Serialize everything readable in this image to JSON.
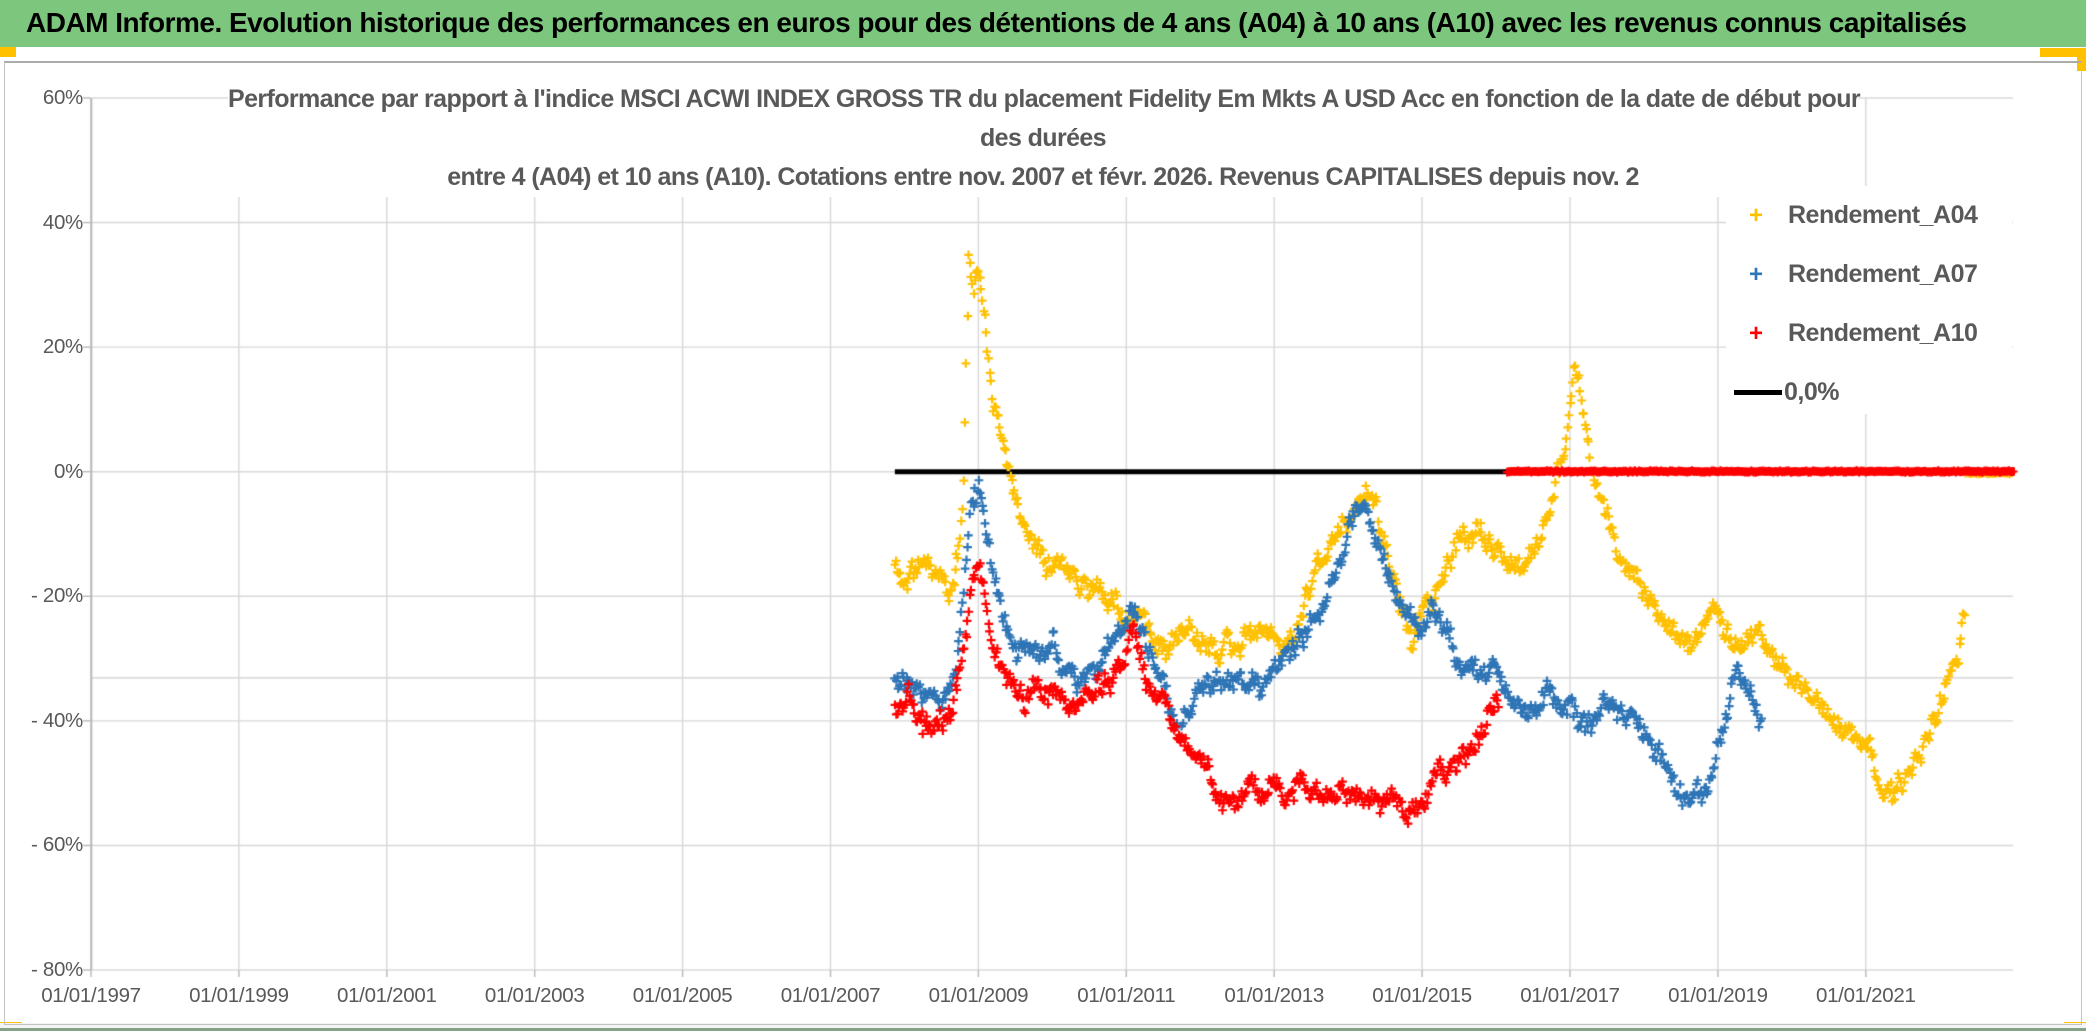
{
  "header": {
    "title": "ADAM Informe. Evolution historique des performances en euros pour des détentions de 4 ans (A04) à 10 ans (A10) avec les revenus connus capitalisés"
  },
  "colors": {
    "header_green": "#7cc77d",
    "gold": "#FFC000",
    "blue": "#2E75B6",
    "red": "#FF0000",
    "black": "#000000",
    "text_gray": "#595959",
    "gridline": "#d8d8d8",
    "axis_line": "#b8b8b8"
  },
  "chart_data": {
    "type": "scatter",
    "title_lines": [
      "Performance par rapport à l'indice MSCI ACWI INDEX GROSS TR  du placement Fidelity Em Mkts A USD Acc en fonction de la date de début pour",
      "des durées",
      "entre 4 (A04) et 10 ans (A10). Cotations entre nov. 2007 et févr. 2026. Revenus CAPITALISES depuis nov. 2"
    ],
    "x_axis": {
      "tick_labels": [
        "01/01/1997",
        "01/01/1999",
        "01/01/2001",
        "01/01/2003",
        "01/01/2005",
        "01/01/2007",
        "01/01/2009",
        "01/01/2011",
        "01/01/2013",
        "01/01/2015",
        "01/01/2017",
        "01/01/2019",
        "01/01/2021"
      ],
      "tick_years": [
        1997,
        1999,
        2001,
        2003,
        2005,
        2007,
        2009,
        2011,
        2013,
        2015,
        2017,
        2019,
        2021
      ],
      "min_year": 1997,
      "max_year": 2023
    },
    "y_axis": {
      "tick_labels": [
        "60%",
        "40%",
        "20%",
        "0%",
        "- 20%",
        "- 40%",
        "- 60%",
        "- 80%"
      ],
      "tick_values": [
        60,
        40,
        20,
        0,
        -20,
        -40,
        -60,
        -80
      ],
      "min": -80,
      "max": 60,
      "extra_gridline_value": -33.1
    },
    "legend": [
      {
        "label": "Rendement_A04",
        "marker": "plus",
        "color": "#FFC000"
      },
      {
        "label": "Rendement_A07",
        "marker": "plus",
        "color": "#2E75B6"
      },
      {
        "label": "Rendement_A10",
        "marker": "plus",
        "color": "#FF0000"
      },
      {
        "label": "0,0%",
        "marker": "line",
        "color": "#000000"
      }
    ],
    "reference_lines": {
      "zero_black": {
        "value": 0,
        "from_year": 2007.87,
        "to_year": 2016.18
      },
      "zero_red_missing": {
        "value": 0,
        "from_year": 2016.15,
        "to_year": 2022.98
      },
      "zero_gold_missing": {
        "value": 0,
        "from_year": 2022.35,
        "to_year": 2022.98
      }
    },
    "series": [
      {
        "name": "Rendement_A04",
        "color": "#FFC000",
        "seed": 11,
        "keypoints": [
          [
            2007.87,
            -15
          ],
          [
            2008.05,
            -17
          ],
          [
            2008.25,
            -15
          ],
          [
            2008.45,
            -18
          ],
          [
            2008.62,
            -20
          ],
          [
            2008.72,
            -14
          ],
          [
            2008.8,
            -3
          ],
          [
            2008.87,
            36
          ],
          [
            2008.93,
            29
          ],
          [
            2009.0,
            32
          ],
          [
            2009.08,
            24
          ],
          [
            2009.2,
            13
          ],
          [
            2009.33,
            4
          ],
          [
            2009.45,
            -4
          ],
          [
            2009.6,
            -9
          ],
          [
            2009.8,
            -12
          ],
          [
            2010.0,
            -14
          ],
          [
            2010.3,
            -16
          ],
          [
            2010.6,
            -18
          ],
          [
            2010.85,
            -21
          ],
          [
            2011.05,
            -24
          ],
          [
            2011.15,
            -22
          ],
          [
            2011.35,
            -26
          ],
          [
            2011.55,
            -28
          ],
          [
            2011.75,
            -26
          ],
          [
            2012.0,
            -28
          ],
          [
            2012.3,
            -29
          ],
          [
            2012.6,
            -27
          ],
          [
            2012.9,
            -25
          ],
          [
            2013.1,
            -30
          ],
          [
            2013.3,
            -25
          ],
          [
            2013.5,
            -18
          ],
          [
            2013.7,
            -13
          ],
          [
            2013.95,
            -8
          ],
          [
            2014.15,
            -4
          ],
          [
            2014.28,
            -2
          ],
          [
            2014.45,
            -10
          ],
          [
            2014.65,
            -18
          ],
          [
            2014.85,
            -27
          ],
          [
            2015.05,
            -21
          ],
          [
            2015.25,
            -17
          ],
          [
            2015.5,
            -11
          ],
          [
            2015.75,
            -10
          ],
          [
            2016.0,
            -13
          ],
          [
            2016.2,
            -15
          ],
          [
            2016.4,
            -17
          ],
          [
            2016.55,
            -12
          ],
          [
            2016.75,
            -5
          ],
          [
            2016.95,
            5
          ],
          [
            2017.05,
            18
          ],
          [
            2017.15,
            10
          ],
          [
            2017.3,
            1
          ],
          [
            2017.45,
            -7
          ],
          [
            2017.65,
            -13
          ],
          [
            2017.9,
            -17
          ],
          [
            2018.15,
            -22
          ],
          [
            2018.4,
            -27
          ],
          [
            2018.6,
            -28
          ],
          [
            2018.8,
            -24
          ],
          [
            2018.95,
            -22
          ],
          [
            2019.15,
            -26
          ],
          [
            2019.35,
            -28
          ],
          [
            2019.55,
            -26
          ],
          [
            2019.75,
            -29
          ],
          [
            2020.0,
            -33
          ],
          [
            2020.25,
            -36
          ],
          [
            2020.5,
            -38
          ],
          [
            2020.75,
            -41
          ],
          [
            2021.0,
            -46
          ],
          [
            2021.2,
            -50
          ],
          [
            2021.35,
            -52
          ],
          [
            2021.55,
            -49
          ],
          [
            2021.75,
            -45
          ],
          [
            2021.95,
            -40
          ],
          [
            2022.15,
            -32
          ],
          [
            2022.35,
            -24
          ]
        ]
      },
      {
        "name": "Rendement_A07",
        "color": "#2E75B6",
        "seed": 22,
        "keypoints": [
          [
            2007.87,
            -33
          ],
          [
            2008.1,
            -31
          ],
          [
            2008.3,
            -35
          ],
          [
            2008.5,
            -37
          ],
          [
            2008.7,
            -33
          ],
          [
            2008.8,
            -20
          ],
          [
            2008.88,
            -6
          ],
          [
            2009.0,
            -3
          ],
          [
            2009.1,
            -10
          ],
          [
            2009.22,
            -18
          ],
          [
            2009.38,
            -26
          ],
          [
            2009.55,
            -29
          ],
          [
            2009.75,
            -30
          ],
          [
            2009.95,
            -29
          ],
          [
            2010.15,
            -31
          ],
          [
            2010.4,
            -33
          ],
          [
            2010.65,
            -31
          ],
          [
            2010.9,
            -27
          ],
          [
            2011.1,
            -23
          ],
          [
            2011.3,
            -30
          ],
          [
            2011.5,
            -35
          ],
          [
            2011.7,
            -42
          ],
          [
            2011.85,
            -37
          ],
          [
            2012.05,
            -34
          ],
          [
            2012.25,
            -36
          ],
          [
            2012.5,
            -34
          ],
          [
            2012.75,
            -34
          ],
          [
            2013.0,
            -33
          ],
          [
            2013.2,
            -30
          ],
          [
            2013.4,
            -26
          ],
          [
            2013.6,
            -21
          ],
          [
            2013.8,
            -15
          ],
          [
            2014.0,
            -9
          ],
          [
            2014.17,
            -5
          ],
          [
            2014.35,
            -11
          ],
          [
            2014.55,
            -17
          ],
          [
            2014.75,
            -21
          ],
          [
            2014.95,
            -24
          ],
          [
            2015.15,
            -22
          ],
          [
            2015.35,
            -26
          ],
          [
            2015.55,
            -31
          ],
          [
            2015.75,
            -33
          ],
          [
            2015.95,
            -31
          ],
          [
            2016.15,
            -35
          ],
          [
            2016.35,
            -40
          ],
          [
            2016.55,
            -38
          ],
          [
            2016.75,
            -36
          ],
          [
            2016.95,
            -38
          ],
          [
            2017.2,
            -40
          ],
          [
            2017.45,
            -38
          ],
          [
            2017.7,
            -39
          ],
          [
            2017.95,
            -41
          ],
          [
            2018.2,
            -45
          ],
          [
            2018.45,
            -50
          ],
          [
            2018.65,
            -54
          ],
          [
            2018.8,
            -52
          ],
          [
            2018.95,
            -46
          ],
          [
            2019.1,
            -39
          ],
          [
            2019.25,
            -33
          ],
          [
            2019.4,
            -35
          ],
          [
            2019.6,
            -39
          ]
        ]
      },
      {
        "name": "Rendement_A10",
        "color": "#FF0000",
        "seed": 33,
        "keypoints": [
          [
            2007.87,
            -38
          ],
          [
            2008.05,
            -36
          ],
          [
            2008.25,
            -42
          ],
          [
            2008.45,
            -43
          ],
          [
            2008.65,
            -40
          ],
          [
            2008.8,
            -28
          ],
          [
            2008.92,
            -16
          ],
          [
            2009.02,
            -15
          ],
          [
            2009.12,
            -22
          ],
          [
            2009.25,
            -29
          ],
          [
            2009.42,
            -34
          ],
          [
            2009.6,
            -36
          ],
          [
            2009.8,
            -34
          ],
          [
            2010.0,
            -36
          ],
          [
            2010.25,
            -38
          ],
          [
            2010.5,
            -36
          ],
          [
            2010.75,
            -34
          ],
          [
            2010.95,
            -31
          ],
          [
            2011.1,
            -26
          ],
          [
            2011.3,
            -34
          ],
          [
            2011.5,
            -38
          ],
          [
            2011.7,
            -43
          ],
          [
            2011.9,
            -45
          ],
          [
            2012.1,
            -48
          ],
          [
            2012.3,
            -51
          ],
          [
            2012.5,
            -53
          ],
          [
            2012.65,
            -51
          ],
          [
            2012.85,
            -52
          ],
          [
            2013.05,
            -50
          ],
          [
            2013.25,
            -52
          ],
          [
            2013.45,
            -50
          ],
          [
            2013.65,
            -51
          ],
          [
            2013.85,
            -52
          ],
          [
            2014.05,
            -51
          ],
          [
            2014.25,
            -52
          ],
          [
            2014.45,
            -53
          ],
          [
            2014.65,
            -52
          ],
          [
            2014.85,
            -54
          ],
          [
            2015.0,
            -53
          ],
          [
            2015.15,
            -51
          ],
          [
            2015.35,
            -48
          ],
          [
            2015.55,
            -45
          ],
          [
            2015.75,
            -42
          ],
          [
            2015.9,
            -39
          ],
          [
            2016.05,
            -35
          ]
        ]
      }
    ]
  }
}
